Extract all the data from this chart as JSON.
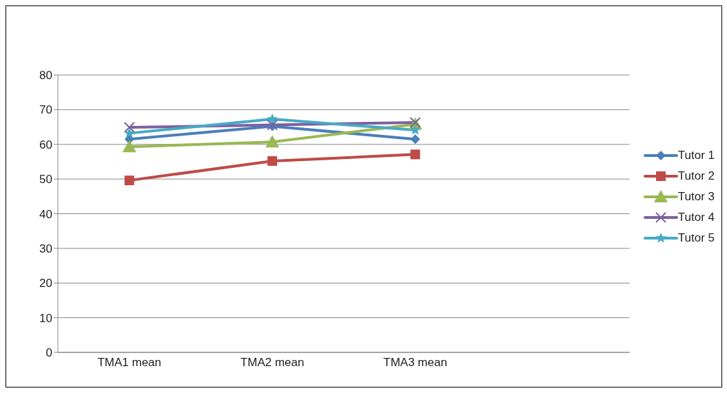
{
  "chart_data": {
    "type": "line",
    "categories": [
      "TMA1 mean",
      "TMA2 mean",
      "TMA3 mean",
      null
    ],
    "series": [
      {
        "name": "Tutor 1",
        "color": "#4a7ebb",
        "marker": "diamond",
        "values": [
          61.5,
          65.2,
          61.5,
          null
        ]
      },
      {
        "name": "Tutor 2",
        "color": "#be4b48",
        "marker": "square",
        "values": [
          49.6,
          55.2,
          57.1,
          null
        ]
      },
      {
        "name": "Tutor 3",
        "color": "#98b954",
        "marker": "triangle",
        "values": [
          59.3,
          60.7,
          65.8,
          null
        ]
      },
      {
        "name": "Tutor 4",
        "color": "#7d60a0",
        "marker": "cross",
        "values": [
          64.9,
          65.6,
          66.3,
          null
        ]
      },
      {
        "name": "Tutor 5",
        "color": "#46aac5",
        "marker": "star",
        "values": [
          63.2,
          67.3,
          64.1,
          null
        ]
      }
    ],
    "ylim": [
      0,
      80
    ],
    "yticks": [
      0,
      10,
      20,
      30,
      40,
      50,
      60,
      70,
      80
    ],
    "grid": "y",
    "legend": "right"
  }
}
